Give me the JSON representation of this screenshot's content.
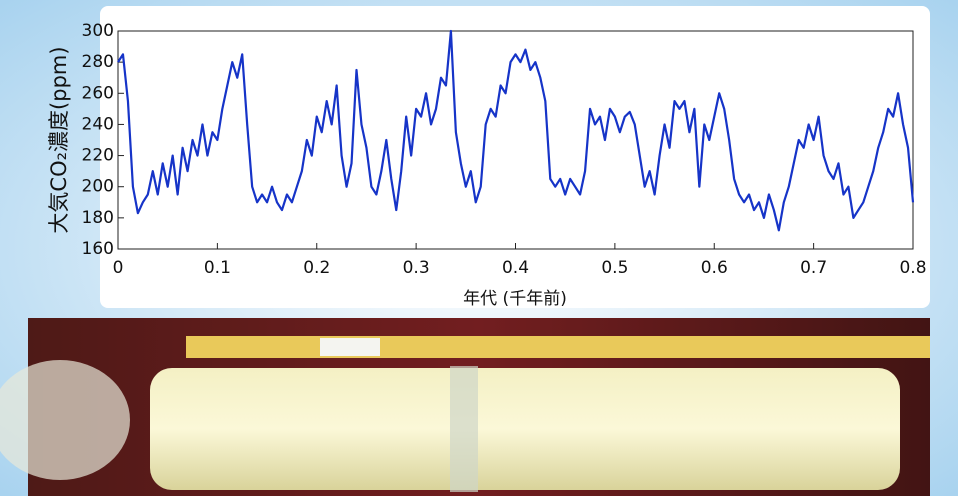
{
  "chart_data": {
    "type": "line",
    "y_label": "大気CO₂濃度(ppm)",
    "x_label": "年代 (千年前)",
    "xlim": [
      0,
      0.8
    ],
    "xticks": [
      0,
      0.1,
      0.2,
      0.3,
      0.4,
      0.5,
      0.6,
      0.7,
      0.8
    ],
    "ylim": [
      160,
      300
    ],
    "yticks": [
      160,
      180,
      200,
      220,
      240,
      260,
      280,
      300
    ],
    "grid": false,
    "x": [
      0,
      0.005,
      0.01,
      0.015,
      0.02,
      0.025,
      0.03,
      0.035,
      0.04,
      0.045,
      0.05,
      0.055,
      0.06,
      0.065,
      0.07,
      0.075,
      0.08,
      0.085,
      0.09,
      0.095,
      0.1,
      0.105,
      0.11,
      0.115,
      0.12,
      0.125,
      0.13,
      0.135,
      0.14,
      0.145,
      0.15,
      0.155,
      0.16,
      0.165,
      0.17,
      0.175,
      0.18,
      0.185,
      0.19,
      0.195,
      0.2,
      0.205,
      0.21,
      0.215,
      0.22,
      0.225,
      0.23,
      0.235,
      0.24,
      0.245,
      0.25,
      0.255,
      0.26,
      0.265,
      0.27,
      0.275,
      0.28,
      0.285,
      0.29,
      0.295,
      0.3,
      0.305,
      0.31,
      0.315,
      0.32,
      0.325,
      0.33,
      0.335,
      0.34,
      0.345,
      0.35,
      0.355,
      0.36,
      0.365,
      0.37,
      0.375,
      0.38,
      0.385,
      0.39,
      0.395,
      0.4,
      0.405,
      0.41,
      0.415,
      0.42,
      0.425,
      0.43,
      0.435,
      0.44,
      0.445,
      0.45,
      0.455,
      0.46,
      0.465,
      0.47,
      0.475,
      0.48,
      0.485,
      0.49,
      0.495,
      0.5,
      0.505,
      0.51,
      0.515,
      0.52,
      0.525,
      0.53,
      0.535,
      0.54,
      0.545,
      0.55,
      0.555,
      0.56,
      0.565,
      0.57,
      0.575,
      0.58,
      0.585,
      0.59,
      0.595,
      0.6,
      0.605,
      0.61,
      0.615,
      0.62,
      0.625,
      0.63,
      0.635,
      0.64,
      0.645,
      0.65,
      0.655,
      0.66,
      0.665,
      0.67,
      0.675,
      0.68,
      0.685,
      0.69,
      0.695,
      0.7,
      0.705,
      0.71,
      0.715,
      0.72,
      0.725,
      0.73,
      0.735,
      0.74,
      0.745,
      0.75,
      0.755,
      0.76,
      0.765,
      0.77,
      0.775,
      0.78,
      0.785,
      0.79,
      0.795,
      0.8
    ],
    "series": [
      {
        "color": "#1634c8",
        "values": [
          280,
          285,
          255,
          200,
          183,
          190,
          195,
          210,
          195,
          215,
          200,
          220,
          195,
          225,
          210,
          230,
          220,
          240,
          220,
          235,
          230,
          250,
          265,
          280,
          270,
          285,
          240,
          200,
          190,
          195,
          190,
          200,
          190,
          185,
          195,
          190,
          200,
          210,
          230,
          220,
          245,
          235,
          255,
          240,
          265,
          220,
          200,
          215,
          275,
          240,
          225,
          200,
          195,
          210,
          230,
          205,
          185,
          210,
          245,
          220,
          250,
          245,
          260,
          240,
          250,
          270,
          265,
          300,
          235,
          215,
          200,
          210,
          190,
          200,
          240,
          250,
          245,
          265,
          260,
          280,
          285,
          280,
          288,
          275,
          280,
          270,
          255,
          205,
          200,
          205,
          195,
          205,
          200,
          195,
          210,
          250,
          240,
          245,
          230,
          250,
          245,
          235,
          245,
          248,
          240,
          220,
          200,
          210,
          195,
          220,
          240,
          225,
          255,
          250,
          255,
          235,
          250,
          200,
          240,
          230,
          245,
          260,
          250,
          230,
          205,
          195,
          190,
          195,
          185,
          190,
          180,
          195,
          185,
          172,
          190,
          200,
          215,
          230,
          225,
          240,
          230,
          245,
          220,
          210,
          205,
          215,
          195,
          200,
          180,
          185,
          190,
          200,
          210,
          225,
          235,
          250,
          245,
          260,
          240,
          225,
          190
        ]
      }
    ]
  }
}
